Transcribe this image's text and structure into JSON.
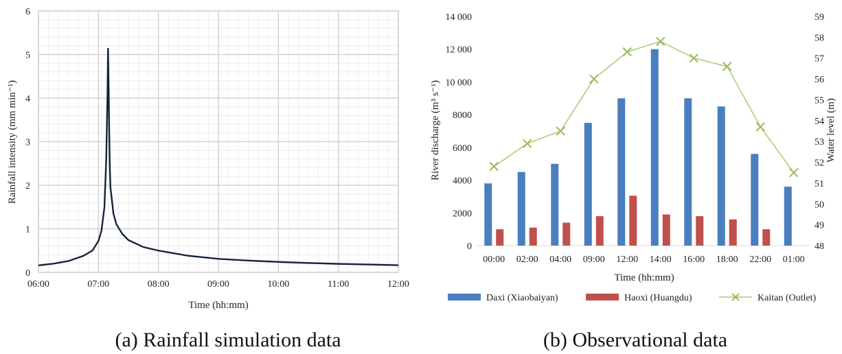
{
  "captions": {
    "a": "(a) Rainfall simulation data",
    "b": "(b) Observational data"
  },
  "chart_data": [
    {
      "type": "line",
      "title": "",
      "xlabel": "Time (hh:mm)",
      "ylabel": "Rainfall intensity (mm min⁻¹)",
      "xticks": [
        "06:00",
        "07:00",
        "08:00",
        "09:00",
        "10:00",
        "11:00",
        "12:00"
      ],
      "yticks": [
        "0",
        "1",
        "2",
        "3",
        "4",
        "5",
        "6"
      ],
      "ylim": [
        0,
        6
      ],
      "grid": true,
      "line_color": "#14233a",
      "series": [
        {
          "x": [
            0,
            0.25,
            0.5,
            0.75,
            0.9,
            1.0,
            1.05,
            1.1,
            1.13,
            1.15,
            1.16,
            1.17,
            1.18,
            1.19,
            1.2,
            1.25,
            1.3,
            1.4,
            1.5,
            1.75,
            2.0,
            2.5,
            3.0,
            3.5,
            4.0,
            4.5,
            5.0,
            5.5,
            6.0
          ],
          "y": [
            0.16,
            0.2,
            0.26,
            0.38,
            0.5,
            0.72,
            0.95,
            1.5,
            2.6,
            4.0,
            5.15,
            4.3,
            3.2,
            2.4,
            1.95,
            1.35,
            1.1,
            0.88,
            0.74,
            0.58,
            0.5,
            0.38,
            0.31,
            0.27,
            0.24,
            0.215,
            0.195,
            0.18,
            0.165
          ]
        }
      ]
    },
    {
      "type": "bar",
      "title": "",
      "xlabel": "Time (hh:mm)",
      "ylabel": "River discharge (m³ s⁻¹)",
      "y2label": "Water level (m)",
      "categories": [
        "00:00",
        "02:00",
        "04:00",
        "09:00",
        "12:00",
        "14:00",
        "16:00",
        "18:00",
        "22:00",
        "01:00"
      ],
      "yticks": [
        "0",
        "2000",
        "4000",
        "6000",
        "8000",
        "10 000",
        "12 000",
        "14 000"
      ],
      "y2ticks": [
        "48",
        "49",
        "50",
        "51",
        "52",
        "53",
        "54",
        "55",
        "56",
        "57",
        "58",
        "59"
      ],
      "ylim": [
        0,
        14000
      ],
      "y2lim": [
        48,
        59
      ],
      "grid": false,
      "legend_position": "bottom",
      "series": [
        {
          "name": "Daxi (Xiaobaiyan)",
          "kind": "bar",
          "color": "#4a7ebf",
          "values": [
            3800,
            4500,
            5000,
            7500,
            9000,
            12000,
            9000,
            8500,
            5600,
            3600
          ]
        },
        {
          "name": "Haoxi (Huangdu)",
          "kind": "bar",
          "color": "#c0504d",
          "values": [
            1000,
            1100,
            1400,
            1800,
            3050,
            1900,
            1800,
            1600,
            1000,
            null
          ]
        },
        {
          "name": "Kaitan (Outlet)",
          "kind": "line",
          "axis": "y2",
          "color": "#9bbb59",
          "values": [
            51.8,
            52.9,
            53.5,
            56.0,
            57.3,
            57.8,
            57.0,
            56.6,
            53.7,
            51.5
          ]
        }
      ]
    }
  ]
}
